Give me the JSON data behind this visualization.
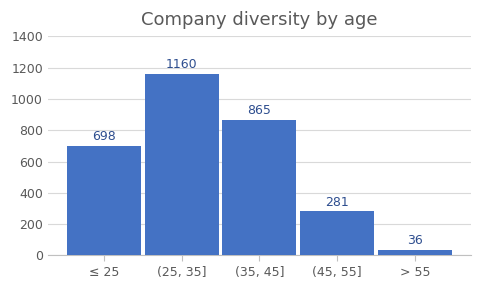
{
  "title": "Company diversity by age",
  "categories": [
    "≤ 25",
    "(25, 35]",
    "(35, 45]",
    "(45, 55]",
    "> 55"
  ],
  "values": [
    698,
    1160,
    865,
    281,
    36
  ],
  "bar_color": "#4472C4",
  "ylim": [
    0,
    1400
  ],
  "yticks": [
    0,
    200,
    400,
    600,
    800,
    1000,
    1200,
    1400
  ],
  "background_color": "#ffffff",
  "plot_bg_color": "#ffffff",
  "title_fontsize": 13,
  "tick_fontsize": 9,
  "annotation_color": "#2E4E8F",
  "annotation_fontsize": 9,
  "grid_color": "#d9d9d9",
  "border_color": "#c0c0c0"
}
